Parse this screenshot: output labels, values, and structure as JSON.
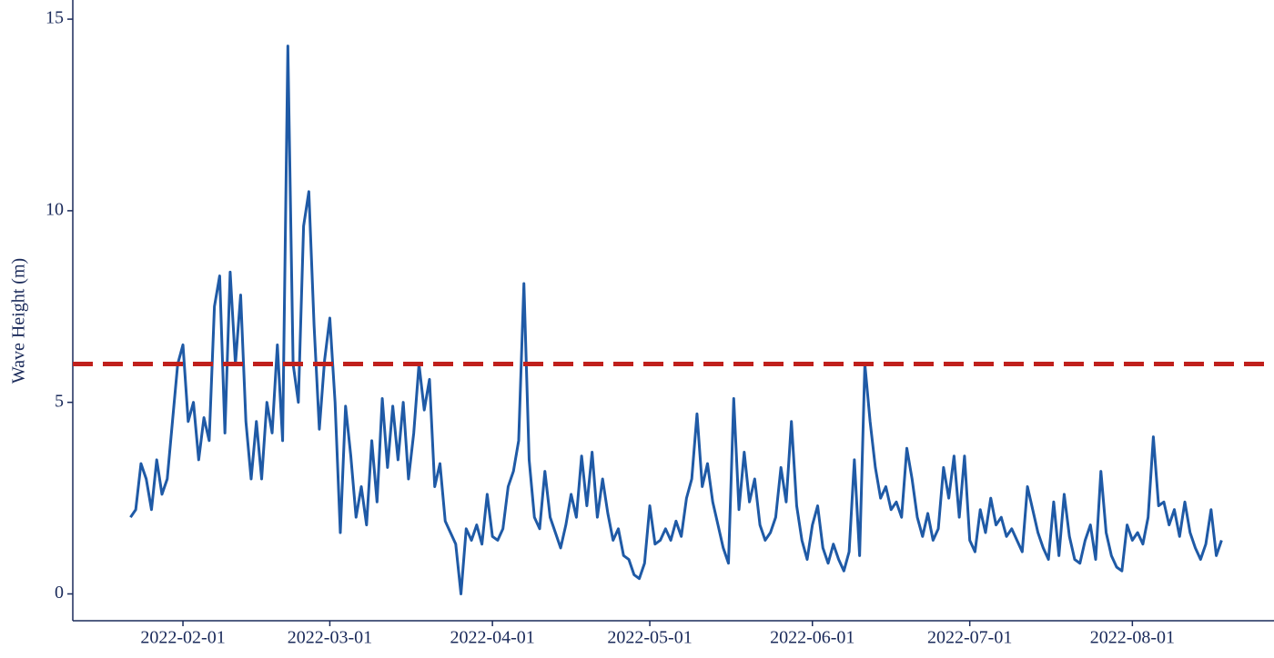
{
  "chart_data": {
    "type": "line",
    "y_label": "Wave Height (m)",
    "x": [
      "2022-01-22",
      "2022-01-23",
      "2022-01-24",
      "2022-01-25",
      "2022-01-26",
      "2022-01-27",
      "2022-01-28",
      "2022-01-29",
      "2022-01-30",
      "2022-01-31",
      "2022-02-01",
      "2022-02-02",
      "2022-02-03",
      "2022-02-04",
      "2022-02-05",
      "2022-02-06",
      "2022-02-07",
      "2022-02-08",
      "2022-02-09",
      "2022-02-10",
      "2022-02-11",
      "2022-02-12",
      "2022-02-13",
      "2022-02-14",
      "2022-02-15",
      "2022-02-16",
      "2022-02-17",
      "2022-02-18",
      "2022-02-19",
      "2022-02-20",
      "2022-02-21",
      "2022-02-22",
      "2022-02-23",
      "2022-02-24",
      "2022-02-25",
      "2022-02-26",
      "2022-02-27",
      "2022-02-28",
      "2022-03-01",
      "2022-03-02",
      "2022-03-03",
      "2022-03-04",
      "2022-03-05",
      "2022-03-06",
      "2022-03-07",
      "2022-03-08",
      "2022-03-09",
      "2022-03-10",
      "2022-03-11",
      "2022-03-12",
      "2022-03-13",
      "2022-03-14",
      "2022-03-15",
      "2022-03-16",
      "2022-03-17",
      "2022-03-18",
      "2022-03-19",
      "2022-03-20",
      "2022-03-21",
      "2022-03-22",
      "2022-03-23",
      "2022-03-24",
      "2022-03-25",
      "2022-03-26",
      "2022-03-27",
      "2022-03-28",
      "2022-03-29",
      "2022-03-30",
      "2022-03-31",
      "2022-04-01",
      "2022-04-02",
      "2022-04-03",
      "2022-04-04",
      "2022-04-05",
      "2022-04-06",
      "2022-04-07",
      "2022-04-08",
      "2022-04-09",
      "2022-04-10",
      "2022-04-11",
      "2022-04-12",
      "2022-04-13",
      "2022-04-14",
      "2022-04-15",
      "2022-04-16",
      "2022-04-17",
      "2022-04-18",
      "2022-04-19",
      "2022-04-20",
      "2022-04-21",
      "2022-04-22",
      "2022-04-23",
      "2022-04-24",
      "2022-04-25",
      "2022-04-26",
      "2022-04-27",
      "2022-04-28",
      "2022-04-29",
      "2022-04-30",
      "2022-05-01",
      "2022-05-02",
      "2022-05-03",
      "2022-05-04",
      "2022-05-05",
      "2022-05-06",
      "2022-05-07",
      "2022-05-08",
      "2022-05-09",
      "2022-05-10",
      "2022-05-11",
      "2022-05-12",
      "2022-05-13",
      "2022-05-14",
      "2022-05-15",
      "2022-05-16",
      "2022-05-17",
      "2022-05-18",
      "2022-05-19",
      "2022-05-20",
      "2022-05-21",
      "2022-05-22",
      "2022-05-23",
      "2022-05-24",
      "2022-05-25",
      "2022-05-26",
      "2022-05-27",
      "2022-05-28",
      "2022-05-29",
      "2022-05-30",
      "2022-05-31",
      "2022-06-01",
      "2022-06-02",
      "2022-06-03",
      "2022-06-04",
      "2022-06-05",
      "2022-06-06",
      "2022-06-07",
      "2022-06-08",
      "2022-06-09",
      "2022-06-10",
      "2022-06-11",
      "2022-06-12",
      "2022-06-13",
      "2022-06-14",
      "2022-06-15",
      "2022-06-16",
      "2022-06-17",
      "2022-06-18",
      "2022-06-19",
      "2022-06-20",
      "2022-06-21",
      "2022-06-22",
      "2022-06-23",
      "2022-06-24",
      "2022-06-25",
      "2022-06-26",
      "2022-06-27",
      "2022-06-28",
      "2022-06-29",
      "2022-06-30",
      "2022-07-01",
      "2022-07-02",
      "2022-07-03",
      "2022-07-04",
      "2022-07-05",
      "2022-07-06",
      "2022-07-07",
      "2022-07-08",
      "2022-07-09",
      "2022-07-10",
      "2022-07-11",
      "2022-07-12",
      "2022-07-13",
      "2022-07-14",
      "2022-07-15",
      "2022-07-16",
      "2022-07-17",
      "2022-07-18",
      "2022-07-19",
      "2022-07-20",
      "2022-07-21",
      "2022-07-22",
      "2022-07-23",
      "2022-07-24",
      "2022-07-25",
      "2022-07-26",
      "2022-07-27",
      "2022-07-28",
      "2022-07-29",
      "2022-07-30",
      "2022-07-31",
      "2022-08-01",
      "2022-08-02",
      "2022-08-03",
      "2022-08-04",
      "2022-08-05",
      "2022-08-06",
      "2022-08-07",
      "2022-08-08",
      "2022-08-09",
      "2022-08-10",
      "2022-08-11",
      "2022-08-12",
      "2022-08-13",
      "2022-08-14",
      "2022-08-15",
      "2022-08-16",
      "2022-08-17",
      "2022-08-18"
    ],
    "series": [
      {
        "color": "#1f5aa6",
        "values": [
          2.0,
          2.2,
          3.4,
          3.0,
          2.2,
          3.5,
          2.6,
          3.0,
          4.5,
          6.0,
          6.5,
          4.5,
          5.0,
          3.5,
          4.6,
          4.0,
          7.5,
          8.3,
          4.2,
          8.4,
          6.0,
          7.8,
          4.5,
          3.0,
          4.5,
          3.0,
          5.0,
          4.2,
          6.5,
          4.0,
          14.3,
          6.0,
          5.0,
          9.6,
          10.5,
          7.0,
          4.3,
          6.1,
          7.2,
          5.0,
          1.6,
          4.9,
          3.6,
          2.0,
          2.8,
          1.8,
          4.0,
          2.4,
          5.1,
          3.3,
          4.9,
          3.5,
          5.0,
          3.0,
          4.2,
          6.0,
          4.8,
          5.6,
          2.8,
          3.4,
          1.9,
          1.6,
          1.3,
          0.0,
          1.7,
          1.4,
          1.8,
          1.3,
          2.6,
          1.5,
          1.4,
          1.7,
          2.8,
          3.2,
          4.0,
          8.1,
          3.5,
          2.0,
          1.7,
          3.2,
          2.0,
          1.6,
          1.2,
          1.8,
          2.6,
          2.0,
          3.6,
          2.3,
          3.7,
          2.0,
          3.0,
          2.1,
          1.4,
          1.7,
          1.0,
          0.9,
          0.5,
          0.4,
          0.8,
          2.3,
          1.3,
          1.4,
          1.7,
          1.4,
          1.9,
          1.5,
          2.5,
          3.0,
          4.7,
          2.8,
          3.4,
          2.4,
          1.8,
          1.2,
          0.8,
          5.1,
          2.2,
          3.7,
          2.4,
          3.0,
          1.8,
          1.4,
          1.6,
          2.0,
          3.3,
          2.4,
          4.5,
          2.3,
          1.4,
          0.9,
          1.8,
          2.3,
          1.2,
          0.8,
          1.3,
          0.9,
          0.6,
          1.1,
          3.5,
          1.0,
          6.0,
          4.5,
          3.3,
          2.5,
          2.8,
          2.2,
          2.4,
          2.0,
          3.8,
          3.0,
          2.0,
          1.5,
          2.1,
          1.4,
          1.7,
          3.3,
          2.5,
          3.6,
          2.0,
          3.6,
          1.4,
          1.1,
          2.2,
          1.6,
          2.5,
          1.8,
          2.0,
          1.5,
          1.7,
          1.4,
          1.1,
          2.8,
          2.2,
          1.6,
          1.2,
          0.9,
          2.4,
          1.0,
          2.6,
          1.5,
          0.9,
          0.8,
          1.4,
          1.8,
          0.9,
          3.2,
          1.6,
          1.0,
          0.7,
          0.6,
          1.8,
          1.4,
          1.6,
          1.3,
          2.0,
          4.1,
          2.3,
          2.4,
          1.8,
          2.2,
          1.5,
          2.4,
          1.6,
          1.2,
          0.9,
          1.3,
          2.2,
          1.0,
          1.4
        ]
      }
    ],
    "hline": {
      "value": 6,
      "color": "#c0201c",
      "dashed": true
    },
    "xlim": [
      "2022-01-11",
      "2022-08-28"
    ],
    "xticks": [
      "2022-02-01",
      "2022-03-01",
      "2022-04-01",
      "2022-05-01",
      "2022-06-01",
      "2022-07-01",
      "2022-08-01"
    ],
    "ylim": [
      -0.7,
      15.5
    ],
    "yticks": [
      0,
      5,
      10,
      15
    ],
    "grid": false
  }
}
